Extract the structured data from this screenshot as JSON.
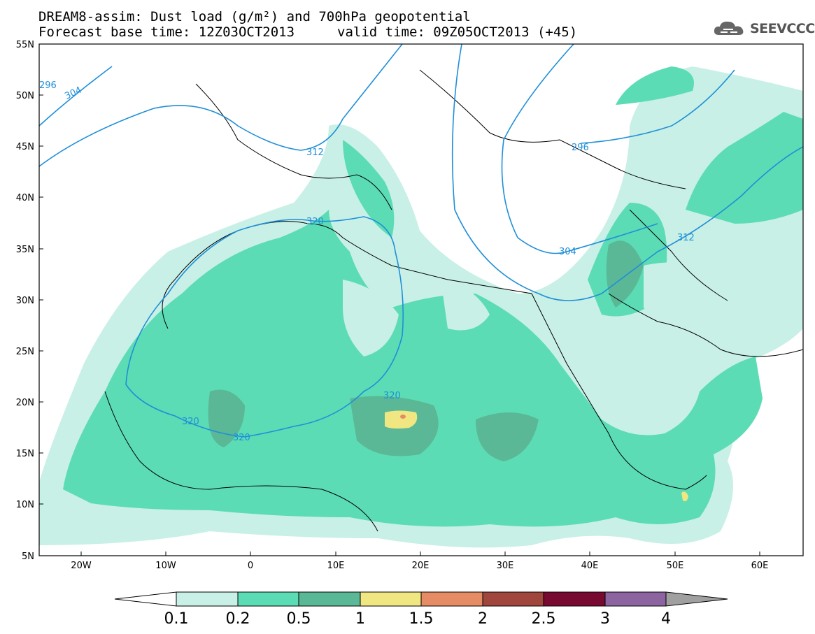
{
  "header": {
    "title": "DREAM8-assim: Dust load (g/m²) and 700hPa geopotential",
    "base_time": "Forecast base time: 12Z03OCT2013",
    "valid_time": "valid time: 09Z05OCT2013 (+45)",
    "logo_text": "SEEVCCC"
  },
  "map": {
    "lat_labels": [
      "55N",
      "50N",
      "45N",
      "40N",
      "35N",
      "30N",
      "25N",
      "20N",
      "15N",
      "10N",
      "5N"
    ],
    "lon_labels": [
      "20W",
      "10W",
      "0",
      "10E",
      "20E",
      "30E",
      "40E",
      "50E",
      "60E"
    ],
    "contour_labels": [
      {
        "label": "296",
        "color": "#1f8fd8"
      },
      {
        "label": "304",
        "color": "#1f8fd8"
      },
      {
        "label": "312",
        "color": "#1f8fd8"
      },
      {
        "label": "320",
        "color": "#1f8fd8"
      }
    ]
  },
  "colorbar": {
    "levels": [
      "0.1",
      "0.2",
      "0.5",
      "1",
      "1.5",
      "2",
      "2.5",
      "3",
      "4"
    ],
    "colors": [
      "#c8f0e6",
      "#5cdcb4",
      "#5ab896",
      "#f0e682",
      "#e68c64",
      "#a0463c",
      "#780a32",
      "#8c64a0",
      "#a0a0a0"
    ],
    "units": "g/m²"
  }
}
